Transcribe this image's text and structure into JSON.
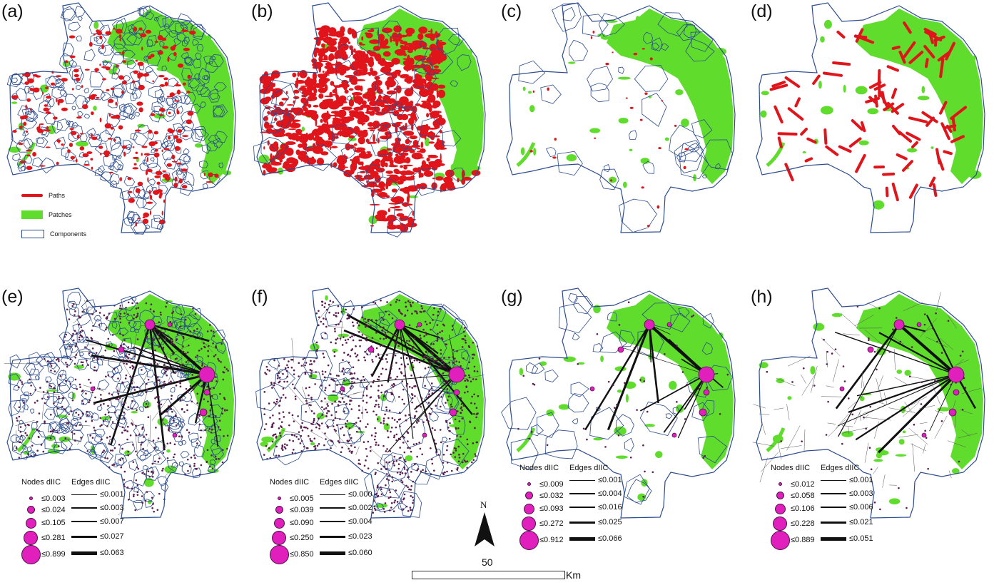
{
  "panels": [
    {
      "label": "(a)"
    },
    {
      "label": "(b)"
    },
    {
      "label": "(c)"
    },
    {
      "label": "(d)"
    },
    {
      "label": "(e)"
    },
    {
      "label": "(f)"
    },
    {
      "label": "(g)"
    },
    {
      "label": "(h)"
    }
  ],
  "legend_a": {
    "paths": "Paths",
    "patches": "Patches",
    "components": "Components"
  },
  "legend_e": {
    "nodes_header": "Nodes dIIC",
    "edges_header": "Edges dIIC",
    "nodes": [
      "≤0.003",
      "≤0.024",
      "≤0.105",
      "≤0.281",
      "≤0.899"
    ],
    "edges": [
      "≤0.001",
      "≤0.003",
      "≤0.007",
      "≤0.027",
      "≤0.063"
    ]
  },
  "legend_f": {
    "nodes_header": "Nodes dIIC",
    "edges_header": "Edges dIIC",
    "nodes": [
      "≤0.005",
      "≤0.039",
      "≤0.090",
      "≤0.250",
      "≤0.850"
    ],
    "edges": [
      "≤0.000",
      "≤0.002",
      "≤0.004",
      "≤0.023",
      "≤0.060"
    ]
  },
  "legend_g": {
    "nodes_header": "Nodes dIIC",
    "edges_header": "Edges dIIC",
    "nodes": [
      "≤0.009",
      "≤0.032",
      "≤0.093",
      "≤0.272",
      "≤0.912"
    ],
    "edges": [
      "≤0.001",
      "≤0.004",
      "≤0.016",
      "≤0.025",
      "≤0.066"
    ]
  },
  "legend_h": {
    "nodes_header": "Nodes dIIC",
    "edges_header": "Edges dIIC",
    "nodes": [
      "≤0.012",
      "≤0.058",
      "≤0.106",
      "≤0.228",
      "≤0.889"
    ],
    "edges": [
      "≤0.001",
      "≤0.003",
      "≤0.006",
      "≤0.021",
      "≤0.051"
    ]
  },
  "north_arrow": {
    "label": "N"
  },
  "scale_bar": {
    "value": "50",
    "unit": "Km"
  },
  "colors": {
    "patch": "#5fdc2c",
    "path": "#e0141b",
    "component": "#2b4c8e",
    "node": "#e11fbd",
    "edge": "#111111"
  }
}
